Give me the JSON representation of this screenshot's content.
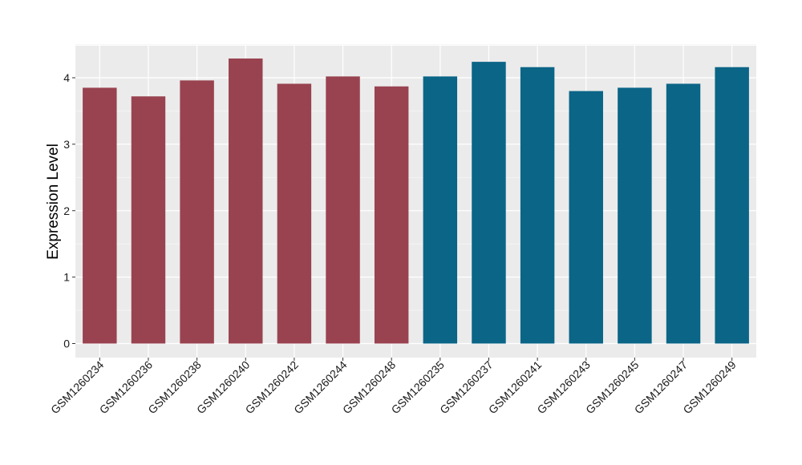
{
  "chart_data": {
    "type": "bar",
    "ylabel": "Expression Level",
    "xlabel": "",
    "ylim": [
      0,
      4.5
    ],
    "yticks": [
      0,
      1,
      2,
      3,
      4
    ],
    "grid": true,
    "legend": "none",
    "panel_color": "#ebebeb",
    "categories": [
      "GSM1260234",
      "GSM1260236",
      "GSM1260238",
      "GSM1260240",
      "GSM1260242",
      "GSM1260244",
      "GSM1260248",
      "GSM1260235",
      "GSM1260237",
      "GSM1260241",
      "GSM1260243",
      "GSM1260245",
      "GSM1260247",
      "GSM1260249"
    ],
    "values": [
      3.85,
      3.72,
      3.96,
      4.29,
      3.91,
      4.02,
      3.87,
      4.02,
      4.24,
      4.16,
      3.8,
      3.85,
      3.91,
      4.16
    ],
    "bar_colors": [
      "#994350",
      "#994350",
      "#994350",
      "#994350",
      "#994350",
      "#994350",
      "#994350",
      "#0b6587",
      "#0b6587",
      "#0b6587",
      "#0b6587",
      "#0b6587",
      "#0b6587",
      "#0b6587"
    ]
  }
}
